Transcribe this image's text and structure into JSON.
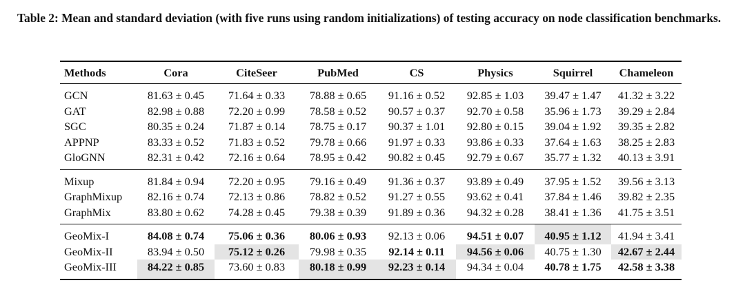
{
  "caption": "Table 2: Mean and standard deviation (with five runs using random initializations) of testing accuracy on node classification benchmarks.",
  "table": {
    "headers": [
      "Methods",
      "Cora",
      "CiteSeer",
      "PubMed",
      "CS",
      "Physics",
      "Squirrel",
      "Chameleon"
    ],
    "groups": [
      {
        "rows": [
          {
            "method": "GCN",
            "cells": [
              {
                "v": "81.63 ± 0.45"
              },
              {
                "v": "71.64 ± 0.33"
              },
              {
                "v": "78.88 ± 0.65"
              },
              {
                "v": "91.16 ± 0.52"
              },
              {
                "v": "92.85 ± 1.03"
              },
              {
                "v": "39.47 ± 1.47"
              },
              {
                "v": "41.32 ± 3.22"
              }
            ]
          },
          {
            "method": "GAT",
            "cells": [
              {
                "v": "82.98 ± 0.88"
              },
              {
                "v": "72.20 ± 0.99"
              },
              {
                "v": "78.58 ± 0.52"
              },
              {
                "v": "90.57 ± 0.37"
              },
              {
                "v": "92.70 ± 0.58"
              },
              {
                "v": "35.96 ± 1.73"
              },
              {
                "v": "39.29 ± 2.84"
              }
            ]
          },
          {
            "method": "SGC",
            "cells": [
              {
                "v": "80.35 ± 0.24"
              },
              {
                "v": "71.87 ± 0.14"
              },
              {
                "v": "78.75 ± 0.17"
              },
              {
                "v": "90.37 ± 1.01"
              },
              {
                "v": "92.80 ± 0.15"
              },
              {
                "v": "39.04 ± 1.92"
              },
              {
                "v": "39.35 ± 2.82"
              }
            ]
          },
          {
            "method": "APPNP",
            "cells": [
              {
                "v": "83.33 ± 0.52"
              },
              {
                "v": "71.83 ± 0.52"
              },
              {
                "v": "79.78 ± 0.66"
              },
              {
                "v": "91.97 ± 0.33"
              },
              {
                "v": "93.86 ± 0.33"
              },
              {
                "v": "37.64 ± 1.63"
              },
              {
                "v": "38.25 ± 2.83"
              }
            ]
          },
          {
            "method": "GloGNN",
            "cells": [
              {
                "v": "82.31 ± 0.42"
              },
              {
                "v": "72.16 ± 0.64"
              },
              {
                "v": "78.95 ± 0.42"
              },
              {
                "v": "90.82 ± 0.45"
              },
              {
                "v": "92.79 ± 0.67"
              },
              {
                "v": "35.77 ± 1.32"
              },
              {
                "v": "40.13 ± 3.91"
              }
            ]
          }
        ]
      },
      {
        "rows": [
          {
            "method": "Mixup",
            "cells": [
              {
                "v": "81.84 ± 0.94"
              },
              {
                "v": "72.20 ± 0.95"
              },
              {
                "v": "79.16 ± 0.49"
              },
              {
                "v": "91.36 ± 0.37"
              },
              {
                "v": "93.89 ± 0.49"
              },
              {
                "v": "37.95 ± 1.52"
              },
              {
                "v": "39.56 ± 3.13"
              }
            ]
          },
          {
            "method": "GraphMixup",
            "cells": [
              {
                "v": "82.16 ± 0.74"
              },
              {
                "v": "72.13 ± 0.86"
              },
              {
                "v": "78.82 ± 0.52"
              },
              {
                "v": "91.27 ± 0.55"
              },
              {
                "v": "93.62 ± 0.41"
              },
              {
                "v": "37.84 ± 1.46"
              },
              {
                "v": "39.82 ± 2.35"
              }
            ]
          },
          {
            "method": "GraphMix",
            "cells": [
              {
                "v": "83.80 ± 0.62"
              },
              {
                "v": "74.28 ± 0.45"
              },
              {
                "v": "79.38 ± 0.39"
              },
              {
                "v": "91.89 ± 0.36"
              },
              {
                "v": "94.32 ± 0.28"
              },
              {
                "v": "38.41 ± 1.36"
              },
              {
                "v": "41.75 ± 3.51"
              }
            ]
          }
        ]
      },
      {
        "rows": [
          {
            "method": "GeoMix-I",
            "cells": [
              {
                "v": "84.08 ± 0.74",
                "bold": true
              },
              {
                "v": "75.06 ± 0.36",
                "bold": true
              },
              {
                "v": "80.06 ± 0.93",
                "bold": true
              },
              {
                "v": "92.13 ± 0.06"
              },
              {
                "v": "94.51 ± 0.07",
                "bold": true
              },
              {
                "v": "40.95 ± 1.12",
                "bold": true,
                "highlight": true
              },
              {
                "v": "41.94 ± 3.41"
              }
            ]
          },
          {
            "method": "GeoMix-II",
            "cells": [
              {
                "v": "83.94 ± 0.50"
              },
              {
                "v": "75.12 ± 0.26",
                "bold": true,
                "highlight": true
              },
              {
                "v": "79.98 ± 0.35"
              },
              {
                "v": "92.14 ± 0.11",
                "bold": true
              },
              {
                "v": "94.56 ± 0.06",
                "bold": true,
                "highlight": true
              },
              {
                "v": "40.75 ± 1.30"
              },
              {
                "v": "42.67 ± 2.44",
                "bold": true,
                "highlight": true
              }
            ]
          },
          {
            "method": "GeoMix-III",
            "cells": [
              {
                "v": "84.22 ± 0.85",
                "bold": true,
                "highlight": true
              },
              {
                "v": "73.60 ± 0.83"
              },
              {
                "v": "80.18 ± 0.99",
                "bold": true,
                "highlight": true
              },
              {
                "v": "92.23 ± 0.14",
                "bold": true,
                "highlight": true
              },
              {
                "v": "94.34 ± 0.04"
              },
              {
                "v": "40.78 ± 1.75",
                "bold": true
              },
              {
                "v": "42.58 ± 3.38",
                "bold": true
              }
            ]
          }
        ]
      }
    ]
  }
}
